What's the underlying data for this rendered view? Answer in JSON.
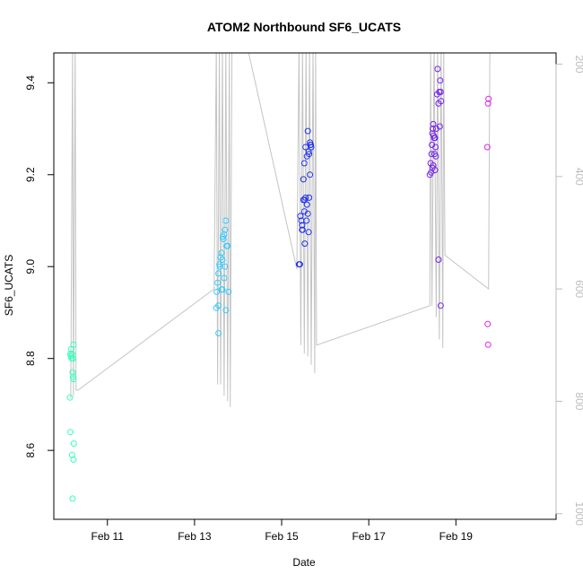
{
  "chart_data": {
    "type": "scatter",
    "title": "ATOM2 Northbound SF6_UCATS",
    "xlabel": "Date",
    "ylabel": "SF6_UCATS",
    "x_unit": "days since Feb 10 00:00",
    "xlim": [
      9.77,
      21.3
    ],
    "ylim": [
      8.45,
      9.465
    ],
    "x_ticks": [
      {
        "value": 11,
        "label": "Feb 11"
      },
      {
        "value": 13,
        "label": "Feb 13"
      },
      {
        "value": 15,
        "label": "Feb 15"
      },
      {
        "value": 17,
        "label": "Feb 17"
      },
      {
        "value": 19,
        "label": "Feb 19"
      }
    ],
    "y_ticks": [
      {
        "value": 8.6,
        "label": "8.6"
      },
      {
        "value": 8.8,
        "label": "8.8"
      },
      {
        "value": 9.0,
        "label": "9.0"
      },
      {
        "value": 9.2,
        "label": "9.2"
      },
      {
        "value": 9.4,
        "label": "9.4"
      }
    ],
    "y2_label": "",
    "y2_ticks": [
      {
        "value": 200,
        "label": "200"
      },
      {
        "value": 400,
        "label": "400"
      },
      {
        "value": 600,
        "label": "600"
      },
      {
        "value": 800,
        "label": "800"
      },
      {
        "value": 1000,
        "label": "1000"
      }
    ],
    "y2lim_top_to_bottom": [
      180,
      1010
    ],
    "grid": false,
    "colors": {
      "group1": "#33ffbb",
      "group2": "#33ccff",
      "group3": "#2233ee",
      "group4": "#7722ee",
      "group5": "#dd22ee",
      "track": "#c4c4c4"
    },
    "series": [
      {
        "color": "#33ffbb",
        "points": [
          [
            10.17,
            8.82
          ],
          [
            10.15,
            8.81
          ],
          [
            10.16,
            8.805
          ],
          [
            10.18,
            8.8
          ],
          [
            10.19,
            8.81
          ],
          [
            10.21,
            8.8
          ],
          [
            10.22,
            8.83
          ],
          [
            10.2,
            8.77
          ],
          [
            10.21,
            8.76
          ],
          [
            10.22,
            8.755
          ],
          [
            10.14,
            8.715
          ],
          [
            10.15,
            8.64
          ],
          [
            10.19,
            8.59
          ],
          [
            10.23,
            8.615
          ],
          [
            10.22,
            8.58
          ],
          [
            10.2,
            8.495
          ]
        ]
      },
      {
        "color": "#33ccff",
        "points": [
          [
            13.5,
            8.91
          ],
          [
            13.51,
            8.945
          ],
          [
            13.53,
            8.965
          ],
          [
            13.55,
            8.985
          ],
          [
            13.57,
            9.005
          ],
          [
            13.58,
            9.0
          ],
          [
            13.6,
            9.02
          ],
          [
            13.62,
            9.03
          ],
          [
            13.64,
            9.015
          ],
          [
            13.66,
            9.06
          ],
          [
            13.68,
            9.07
          ],
          [
            13.7,
            9.08
          ],
          [
            13.72,
            9.1
          ],
          [
            13.74,
            9.045
          ],
          [
            13.76,
            9.045
          ],
          [
            13.78,
            8.945
          ],
          [
            13.7,
            9.0
          ],
          [
            13.68,
            8.975
          ],
          [
            13.62,
            8.95
          ],
          [
            13.64,
            8.95
          ],
          [
            13.55,
            8.915
          ],
          [
            13.55,
            8.855
          ],
          [
            13.72,
            8.905
          ],
          [
            13.65,
            9.065
          ]
        ]
      },
      {
        "color": "#2233ee",
        "points": [
          [
            15.4,
            9.005
          ],
          [
            15.42,
            9.005
          ],
          [
            15.43,
            9.11
          ],
          [
            15.45,
            9.1
          ],
          [
            15.47,
            9.09
          ],
          [
            15.48,
            9.08
          ],
          [
            15.5,
            9.145
          ],
          [
            15.52,
            9.12
          ],
          [
            15.53,
            9.145
          ],
          [
            15.55,
            9.15
          ],
          [
            15.57,
            9.1
          ],
          [
            15.58,
            9.135
          ],
          [
            15.6,
            9.115
          ],
          [
            15.62,
            9.075
          ],
          [
            15.63,
            9.15
          ],
          [
            15.65,
            9.2
          ],
          [
            15.67,
            9.265
          ],
          [
            15.68,
            9.26
          ],
          [
            15.62,
            9.25
          ],
          [
            15.63,
            9.245
          ],
          [
            15.58,
            9.24
          ],
          [
            15.6,
            9.295
          ],
          [
            15.65,
            9.27
          ],
          [
            15.66,
            9.265
          ],
          [
            15.55,
            9.26
          ],
          [
            15.52,
            9.225
          ],
          [
            15.5,
            9.19
          ],
          [
            15.47,
            9.08
          ],
          [
            15.53,
            9.05
          ]
        ]
      },
      {
        "color": "#7722ee",
        "points": [
          [
            18.4,
            9.2
          ],
          [
            18.42,
            9.225
          ],
          [
            18.44,
            9.245
          ],
          [
            18.45,
            9.265
          ],
          [
            18.46,
            9.29
          ],
          [
            18.47,
            9.3
          ],
          [
            18.48,
            9.31
          ],
          [
            18.49,
            9.285
          ],
          [
            18.5,
            9.28
          ],
          [
            18.52,
            9.28
          ],
          [
            18.53,
            9.26
          ],
          [
            18.54,
            9.24
          ],
          [
            18.55,
            9.3
          ],
          [
            18.57,
            9.375
          ],
          [
            18.58,
            9.43
          ],
          [
            18.6,
            9.355
          ],
          [
            18.62,
            9.38
          ],
          [
            18.64,
            9.405
          ],
          [
            18.65,
            9.38
          ],
          [
            18.66,
            9.36
          ],
          [
            18.63,
            9.305
          ],
          [
            18.43,
            9.205
          ],
          [
            18.46,
            9.215
          ],
          [
            18.48,
            9.22
          ],
          [
            18.51,
            9.245
          ],
          [
            18.52,
            9.21
          ],
          [
            18.6,
            9.015
          ],
          [
            18.65,
            8.915
          ]
        ]
      },
      {
        "color": "#dd22ee",
        "points": [
          [
            19.75,
            9.365
          ],
          [
            19.74,
            9.355
          ],
          [
            19.72,
            9.26
          ],
          [
            19.73,
            8.875
          ],
          [
            19.74,
            8.83
          ]
        ]
      }
    ],
    "track": {
      "color": "#c4c4c4",
      "y_axis": "right",
      "segments": [
        [
          [
            10.16,
            795
          ],
          [
            10.2,
            165
          ],
          [
            10.22,
            790
          ],
          [
            10.26,
            165
          ],
          [
            10.28,
            780
          ],
          [
            10.33,
            780
          ],
          [
            13.45,
            600
          ],
          [
            13.5,
            165
          ],
          [
            13.53,
            770
          ],
          [
            13.57,
            165
          ],
          [
            13.6,
            770
          ],
          [
            13.64,
            165
          ],
          [
            13.68,
            790
          ],
          [
            13.72,
            165
          ],
          [
            13.76,
            800
          ],
          [
            13.8,
            165
          ],
          [
            13.82,
            810
          ],
          [
            13.86,
            165
          ]
        ],
        [
          [
            14.2,
            165
          ],
          [
            15.35,
            565
          ],
          [
            15.4,
            165
          ],
          [
            15.44,
            700
          ],
          [
            15.48,
            165
          ],
          [
            15.52,
            715
          ],
          [
            15.56,
            165
          ],
          [
            15.6,
            720
          ],
          [
            15.64,
            165
          ],
          [
            15.68,
            735
          ],
          [
            15.72,
            165
          ],
          [
            15.76,
            750
          ],
          [
            15.78,
            165
          ],
          [
            15.8,
            700
          ],
          [
            18.4,
            630
          ],
          [
            18.42,
            165
          ],
          [
            18.45,
            630
          ],
          [
            18.5,
            165
          ],
          [
            18.55,
            650
          ],
          [
            18.58,
            165
          ],
          [
            18.62,
            690
          ],
          [
            18.66,
            165
          ],
          [
            18.7,
            705
          ],
          [
            18.72,
            165
          ],
          [
            18.75,
            540
          ],
          [
            19.75,
            600
          ],
          [
            19.78,
            165
          ]
        ]
      ]
    }
  }
}
